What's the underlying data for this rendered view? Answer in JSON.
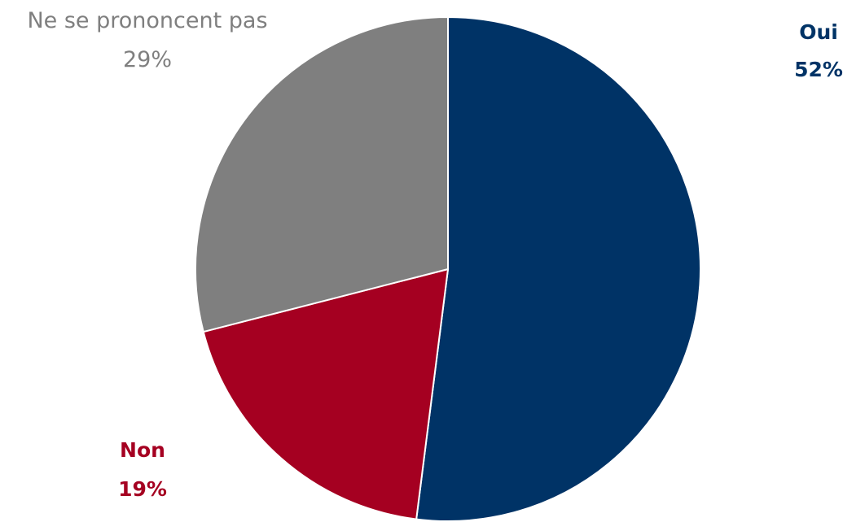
{
  "chart_data": {
    "type": "pie",
    "title": "",
    "slices": [
      {
        "label": "Oui",
        "value": 52,
        "value_label": "52%",
        "color": "#003366",
        "label_color": "#003366",
        "bold": true
      },
      {
        "label": "Non",
        "value": 19,
        "value_label": "19%",
        "color": "#A50021",
        "label_color": "#A50021",
        "bold": true
      },
      {
        "label": "Ne se prononcent pas",
        "value": 29,
        "value_label": "29%",
        "color": "#7F7F7F",
        "label_color": "#7F7F7F",
        "bold": false
      }
    ],
    "start_angle": "12 o'clock",
    "direction": "clockwise",
    "legend": "none (labels placed beside slices)"
  }
}
